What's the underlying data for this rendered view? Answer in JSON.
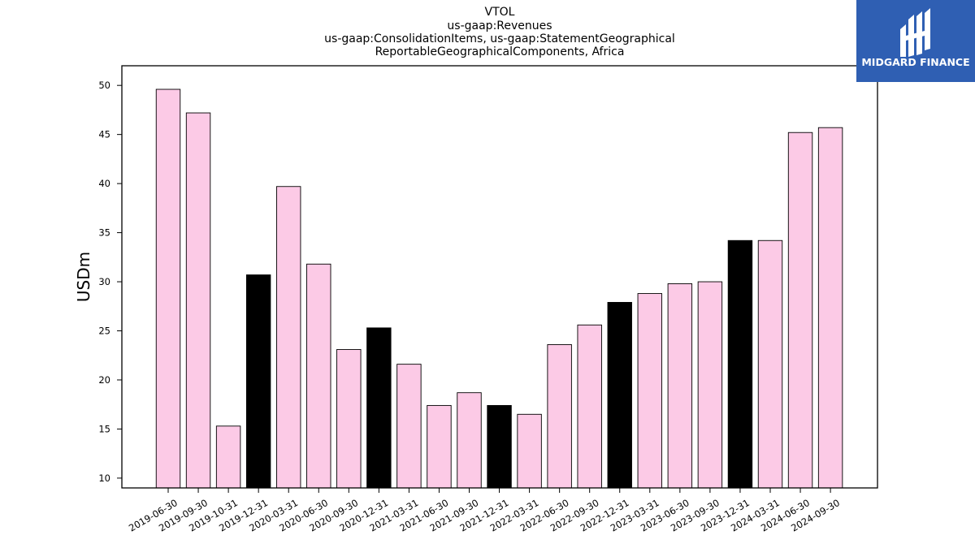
{
  "chart_data": {
    "type": "bar",
    "title": [
      "VTOL",
      "us-gaap:Revenues",
      "us-gaap:ConsolidationItems, us-gaap:StatementGeographical",
      "ReportableGeographicalComponents, Africa"
    ],
    "ylabel": "USDm",
    "xlabel": "",
    "ylim": [
      9,
      52
    ],
    "yticks": [
      10,
      15,
      20,
      25,
      30,
      35,
      40,
      45,
      50
    ],
    "grid": false,
    "colors": {
      "quarter": "#fccae6",
      "annual": "#000000",
      "edge": "#000000"
    },
    "categories": [
      "2019-06-30",
      "2019-09-30",
      "2019-10-31",
      "2019-12-31",
      "2020-03-31",
      "2020-06-30",
      "2020-09-30",
      "2020-12-31",
      "2021-03-31",
      "2021-06-30",
      "2021-09-30",
      "2021-12-31",
      "2022-03-31",
      "2022-06-30",
      "2022-09-30",
      "2022-12-31",
      "2023-03-31",
      "2023-06-30",
      "2023-09-30",
      "2023-12-31",
      "2024-03-31",
      "2024-06-30",
      "2024-09-30"
    ],
    "values": [
      49.6,
      47.2,
      15.3,
      30.7,
      39.7,
      31.8,
      23.1,
      25.3,
      21.6,
      17.4,
      18.7,
      17.4,
      16.5,
      23.6,
      25.6,
      27.9,
      28.8,
      29.8,
      30.0,
      34.2,
      34.2,
      45.2,
      45.7
    ],
    "highlight": [
      false,
      false,
      false,
      true,
      false,
      false,
      false,
      true,
      false,
      false,
      false,
      true,
      false,
      false,
      false,
      true,
      false,
      false,
      false,
      true,
      false,
      false,
      false
    ]
  },
  "logo": {
    "text": "MIDGARD FINANCE",
    "background": "#2f5fb3"
  }
}
